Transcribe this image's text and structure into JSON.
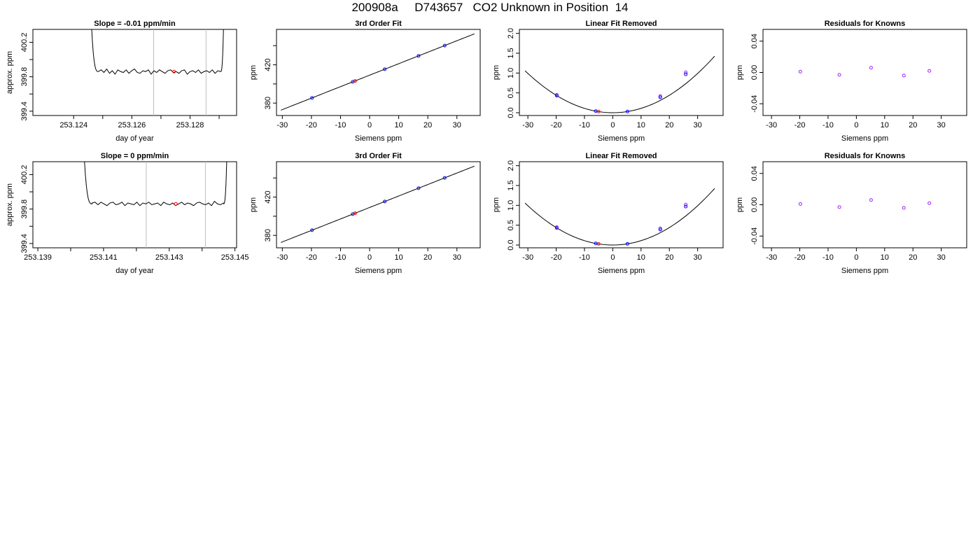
{
  "page_title": "200908a     D743657   CO2 Unknown in Position  14",
  "colors": {
    "trace": "#000000",
    "known_point": "#0000ff",
    "unknown_point": "#ff0000",
    "residual_point": "#a020f0",
    "window_line": "#bebebe",
    "axis": "#000000"
  },
  "chart_data": [
    {
      "type": "line",
      "row": 0,
      "col": 0,
      "title": "Slope =  -0.01  ppm/min",
      "xlabel": "day of year",
      "ylabel": "approx. ppm",
      "xlim": [
        253.1226,
        253.1296
      ],
      "ylim": [
        399.35,
        400.35
      ],
      "xticks": [
        253.124,
        253.125,
        253.126,
        253.127,
        253.128,
        253.129
      ],
      "xtick_labels": [
        "253.124",
        "",
        "253.126",
        "",
        "253.128",
        ""
      ],
      "yticks": [
        399.4,
        399.6,
        399.8,
        400.0,
        400.2
      ],
      "ytick_labels": [
        "399.4",
        "",
        "399.8",
        "",
        "400.2"
      ],
      "window": [
        253.12675,
        253.12855
      ],
      "trace": {
        "x0": 253.1245,
        "x1": 253.1292,
        "start": 401.6,
        "plateau": 399.86,
        "rise_end": 253.12485,
        "fall_start": 253.12905,
        "end": 401.6,
        "noise": [
          0.0,
          0.02,
          -0.01,
          0.03,
          -0.02,
          0.01,
          -0.03,
          0.02,
          0.0,
          -0.01,
          0.02,
          -0.02,
          0.01,
          0.03,
          -0.01,
          -0.02,
          0.01,
          0.0,
          0.02,
          -0.03,
          0.01,
          -0.01,
          0.02,
          0.0,
          -0.02,
          0.01,
          0.02,
          -0.01,
          0.0,
          -0.02,
          0.01,
          0.02,
          -0.03,
          0.0,
          0.01,
          -0.01,
          0.02,
          -0.02,
          0.0,
          0.01,
          -0.01,
          0.02,
          -0.02,
          0.01,
          0.0
        ]
      },
      "marker": {
        "x": 253.12745,
        "y": 399.86
      }
    },
    {
      "type": "scatter",
      "row": 0,
      "col": 1,
      "title": "3rd Order Fit",
      "xlabel": "Siemens ppm",
      "ylabel": "ppm",
      "xlim": [
        -32,
        38
      ],
      "ylim": [
        367,
        457
      ],
      "xticks": [
        -30,
        -20,
        -10,
        0,
        10,
        20,
        30
      ],
      "xtick_labels": [
        "-30",
        "-20",
        "-10",
        "0",
        "10",
        "20",
        "30"
      ],
      "yticks": [
        380,
        400,
        420,
        440
      ],
      "ytick_labels": [
        "380",
        "",
        "420",
        ""
      ],
      "fit": {
        "kind": "line",
        "intercept": 409.15,
        "slope": 1.2,
        "x_range": [
          -30.5,
          36
        ]
      },
      "known_points": [
        {
          "x": -19.8,
          "y": 385.4
        },
        {
          "x": -5.8,
          "y": 402.2
        },
        {
          "x": 5.2,
          "y": 415.4
        },
        {
          "x": 16.8,
          "y": 429.3
        },
        {
          "x": 25.8,
          "y": 440.1
        }
      ],
      "unknown_points": [
        {
          "x": -5.0,
          "y": 403.1
        }
      ]
    },
    {
      "type": "scatter",
      "row": 0,
      "col": 2,
      "title": "Linear Fit Removed",
      "xlabel": "Siemens ppm",
      "ylabel": "ppm",
      "xlim": [
        -33,
        39
      ],
      "ylim": [
        -0.07,
        2.1
      ],
      "xticks": [
        -30,
        -20,
        -10,
        0,
        10,
        20,
        30
      ],
      "xtick_labels": [
        "-30",
        "-20",
        "-10",
        "0",
        "10",
        "20",
        "30"
      ],
      "yticks": [
        0.0,
        0.5,
        1.0,
        1.5,
        2.0
      ],
      "ytick_labels": [
        "0.0",
        "0.5",
        "1.0",
        "1.5",
        "2.0"
      ],
      "fit": {
        "kind": "quad",
        "a": 0.0011,
        "b": 0.0,
        "c": 0.0,
        "x_range": [
          -31,
          36
        ]
      },
      "known_points": [
        {
          "x": -19.8,
          "y": 0.43
        },
        {
          "x": -6.0,
          "y": 0.04
        },
        {
          "x": 5.2,
          "y": 0.03
        },
        {
          "x": 16.8,
          "y": 0.39
        },
        {
          "x": 25.8,
          "y": 0.97
        }
      ],
      "unknown_points": [
        {
          "x": -5.0,
          "y": 0.03
        }
      ],
      "extra_points": [
        {
          "x": 25.8,
          "y": 1.02
        },
        {
          "x": 16.8,
          "y": 0.42
        },
        {
          "x": -19.8,
          "y": 0.45
        }
      ]
    },
    {
      "type": "scatter",
      "row": 0,
      "col": 3,
      "title": "Residuals for Knowns",
      "xlabel": "Siemens ppm",
      "ylabel": "ppm",
      "xlim": [
        -33,
        39
      ],
      "ylim": [
        -0.055,
        0.055
      ],
      "xticks": [
        -30,
        -20,
        -10,
        0,
        10,
        20,
        30
      ],
      "xtick_labels": [
        "-30",
        "-20",
        "-10",
        "0",
        "10",
        "20",
        "30"
      ],
      "yticks": [
        -0.04,
        0.0,
        0.04
      ],
      "ytick_labels": [
        "-0.04",
        "0.00",
        "0.04"
      ],
      "residual_points": [
        {
          "x": -19.8,
          "y": 0.001
        },
        {
          "x": -6.0,
          "y": -0.003
        },
        {
          "x": 5.2,
          "y": 0.006
        },
        {
          "x": 16.8,
          "y": -0.004
        },
        {
          "x": 25.8,
          "y": 0.002
        }
      ]
    },
    {
      "type": "line",
      "row": 1,
      "col": 0,
      "title": "Slope =  0  ppm/min",
      "xlabel": "day of year",
      "ylabel": "approx. ppm",
      "xlim": [
        253.13885,
        253.14505
      ],
      "ylim": [
        399.35,
        400.35
      ],
      "xticks": [
        253.139,
        253.14,
        253.141,
        253.142,
        253.143,
        253.144,
        253.145
      ],
      "xtick_labels": [
        "253.139",
        "",
        "253.141",
        "",
        "253.143",
        "",
        "253.145"
      ],
      "yticks": [
        399.4,
        399.6,
        399.8,
        400.0,
        400.2
      ],
      "ytick_labels": [
        "399.4",
        "",
        "399.8",
        "",
        "400.2"
      ],
      "window": [
        253.1423,
        253.1441
      ],
      "trace": {
        "x0": 253.1403,
        "x1": 253.1448,
        "start": 401.6,
        "plateau": 399.86,
        "rise_end": 253.14065,
        "fall_start": 253.14465,
        "end": 401.6,
        "noise": [
          0.01,
          0.02,
          -0.01,
          0.02,
          0.0,
          -0.02,
          0.01,
          0.02,
          -0.01,
          0.0,
          0.02,
          -0.02,
          0.01,
          0.0,
          -0.01,
          0.02,
          -0.02,
          0.01,
          0.0,
          0.02,
          -0.01,
          0.0,
          0.01,
          -0.02,
          0.02,
          0.0,
          -0.01,
          0.01,
          -0.02,
          0.0,
          0.02,
          -0.01,
          0.01,
          0.0,
          -0.02,
          0.01,
          0.02,
          0.0,
          -0.01,
          0.01,
          -0.02,
          0.03,
          0.0,
          -0.01,
          0.01
        ]
      },
      "marker": {
        "x": 253.1432,
        "y": 399.86
      }
    },
    {
      "type": "scatter",
      "row": 1,
      "col": 1,
      "title": "3rd Order Fit",
      "xlabel": "Siemens ppm",
      "ylabel": "ppm",
      "xlim": [
        -32,
        38
      ],
      "ylim": [
        367,
        457
      ],
      "xticks": [
        -30,
        -20,
        -10,
        0,
        10,
        20,
        30
      ],
      "xtick_labels": [
        "-30",
        "-20",
        "-10",
        "0",
        "10",
        "20",
        "30"
      ],
      "yticks": [
        380,
        400,
        420,
        440
      ],
      "ytick_labels": [
        "380",
        "",
        "420",
        ""
      ],
      "fit": {
        "kind": "line",
        "intercept": 409.15,
        "slope": 1.2,
        "x_range": [
          -30.5,
          36
        ]
      },
      "known_points": [
        {
          "x": -19.8,
          "y": 385.4
        },
        {
          "x": -5.8,
          "y": 402.2
        },
        {
          "x": 5.2,
          "y": 415.4
        },
        {
          "x": 16.8,
          "y": 429.3
        },
        {
          "x": 25.8,
          "y": 440.1
        }
      ],
      "unknown_points": [
        {
          "x": -5.0,
          "y": 403.1
        }
      ]
    },
    {
      "type": "scatter",
      "row": 1,
      "col": 2,
      "title": "Linear Fit Removed",
      "xlabel": "Siemens ppm",
      "ylabel": "ppm",
      "xlim": [
        -33,
        39
      ],
      "ylim": [
        -0.07,
        2.1
      ],
      "xticks": [
        -30,
        -20,
        -10,
        0,
        10,
        20,
        30
      ],
      "xtick_labels": [
        "-30",
        "-20",
        "-10",
        "0",
        "10",
        "20",
        "30"
      ],
      "yticks": [
        0.0,
        0.5,
        1.0,
        1.5,
        2.0
      ],
      "ytick_labels": [
        "0.0",
        "0.5",
        "1.0",
        "1.5",
        "2.0"
      ],
      "fit": {
        "kind": "quad",
        "a": 0.0011,
        "b": 0.0,
        "c": 0.0,
        "x_range": [
          -31,
          36
        ]
      },
      "known_points": [
        {
          "x": -19.8,
          "y": 0.43
        },
        {
          "x": -6.0,
          "y": 0.04
        },
        {
          "x": 5.2,
          "y": 0.03
        },
        {
          "x": 16.8,
          "y": 0.39
        },
        {
          "x": 25.8,
          "y": 0.97
        }
      ],
      "unknown_points": [
        {
          "x": -5.0,
          "y": 0.03
        }
      ],
      "extra_points": [
        {
          "x": 25.8,
          "y": 1.02
        },
        {
          "x": 16.8,
          "y": 0.42
        },
        {
          "x": -19.8,
          "y": 0.45
        }
      ]
    },
    {
      "type": "scatter",
      "row": 1,
      "col": 3,
      "title": "Residuals for Knowns",
      "xlabel": "Siemens ppm",
      "ylabel": "ppm",
      "xlim": [
        -33,
        39
      ],
      "ylim": [
        -0.055,
        0.055
      ],
      "xticks": [
        -30,
        -20,
        -10,
        0,
        10,
        20,
        30
      ],
      "xtick_labels": [
        "-30",
        "-20",
        "-10",
        "0",
        "10",
        "20",
        "30"
      ],
      "yticks": [
        -0.04,
        0.0,
        0.04
      ],
      "ytick_labels": [
        "-0.04",
        "0.00",
        "0.04"
      ],
      "residual_points": [
        {
          "x": -19.8,
          "y": 0.001
        },
        {
          "x": -6.0,
          "y": -0.003
        },
        {
          "x": 5.2,
          "y": 0.006
        },
        {
          "x": 16.8,
          "y": -0.004
        },
        {
          "x": 25.8,
          "y": 0.002
        }
      ]
    }
  ]
}
